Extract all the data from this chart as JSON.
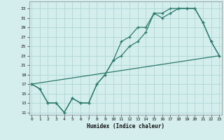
{
  "line1_x": [
    0,
    1,
    2,
    3,
    4,
    5,
    6,
    7,
    8,
    9,
    10,
    11,
    12,
    13,
    14,
    15,
    16,
    17,
    18,
    19,
    20,
    21,
    22,
    23
  ],
  "line1_y": [
    17,
    16,
    13,
    13,
    11,
    14,
    13,
    13,
    17,
    19,
    22,
    23,
    25,
    26,
    28,
    32,
    31,
    32,
    33,
    33,
    33,
    30,
    26,
    23
  ],
  "line2_x": [
    0,
    1,
    2,
    3,
    4,
    5,
    6,
    7,
    8,
    9,
    10,
    11,
    12,
    13,
    14,
    15,
    16,
    17,
    18,
    19,
    20,
    21,
    22,
    23
  ],
  "line2_y": [
    17,
    16,
    13,
    13,
    11,
    14,
    13,
    13,
    17,
    19,
    22,
    26,
    27,
    29,
    29,
    32,
    32,
    33,
    33,
    33,
    33,
    30,
    26,
    23
  ],
  "line3_x": [
    0,
    23
  ],
  "line3_y": [
    17,
    23
  ],
  "color": "#2a7a6a",
  "bg_color": "#d4eded",
  "grid_color": "#aad4d4",
  "xlabel": "Humidex (Indice chaleur)",
  "yticks": [
    11,
    13,
    15,
    17,
    19,
    21,
    23,
    25,
    27,
    29,
    31,
    33
  ],
  "xticks": [
    0,
    1,
    2,
    3,
    4,
    5,
    6,
    7,
    8,
    9,
    10,
    11,
    12,
    13,
    14,
    15,
    16,
    17,
    18,
    19,
    20,
    21,
    22,
    23
  ],
  "xlim": [
    -0.3,
    23.3
  ],
  "ylim": [
    10.5,
    34.5
  ]
}
